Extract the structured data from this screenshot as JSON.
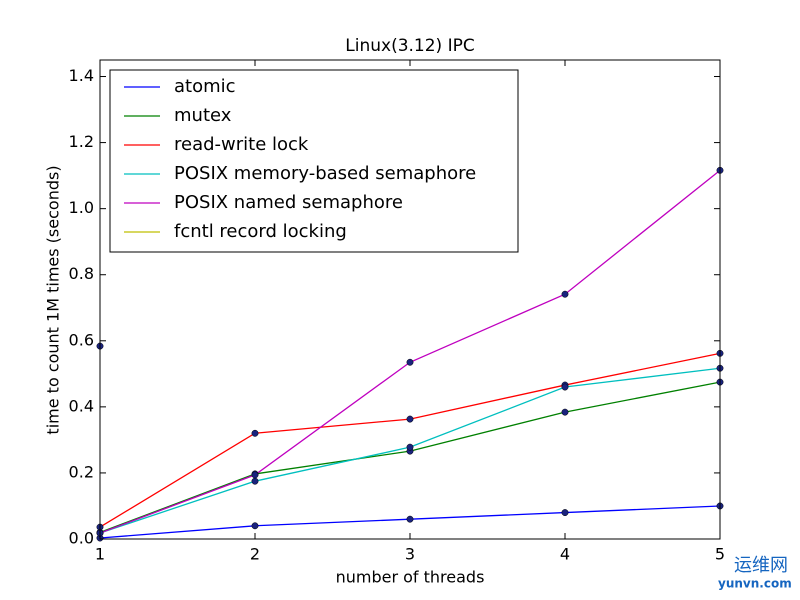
{
  "chart_data": {
    "type": "line",
    "title": "Linux(3.12) IPC",
    "xlabel": "number of threads",
    "ylabel": "time to count 1M times (seconds)",
    "x": [
      1,
      2,
      3,
      4,
      5
    ],
    "xlim": [
      1,
      5
    ],
    "xticks": [
      1,
      2,
      3,
      4,
      5
    ],
    "ylim": [
      0,
      1.45
    ],
    "yticks": [
      {
        "value": 0,
        "label": "0.0"
      },
      0.2,
      0.4,
      0.6,
      0.8,
      {
        "value": 1,
        "label": "1.0"
      },
      1.2,
      1.4
    ],
    "legend": "upper left",
    "marker_color": "#1a237e",
    "series": [
      {
        "name": "atomic",
        "color": "#0000ff",
        "values": [
          0.003,
          0.04,
          0.06,
          0.08,
          0.1
        ]
      },
      {
        "name": "mutex",
        "color": "#008000",
        "values": [
          0.02,
          0.197,
          0.266,
          0.384,
          0.475
        ]
      },
      {
        "name": "read-write lock",
        "color": "#ff0000",
        "values": [
          0.036,
          0.32,
          0.363,
          0.466,
          0.562
        ]
      },
      {
        "name": "POSIX memory-based semaphore",
        "color": "#00bfbf",
        "values": [
          0.018,
          0.175,
          0.278,
          0.46,
          0.517
        ]
      },
      {
        "name": "POSIX named semaphore",
        "color": "#bf00bf",
        "values": [
          0.018,
          0.194,
          0.535,
          0.741,
          1.116
        ]
      },
      {
        "name": "fcntl record locking",
        "color": "#bfbf00",
        "values": [
          0.584,
          null,
          null,
          null,
          null
        ]
      }
    ]
  },
  "watermark": {
    "brand": "运维网",
    "site": "yunvn.com"
  }
}
